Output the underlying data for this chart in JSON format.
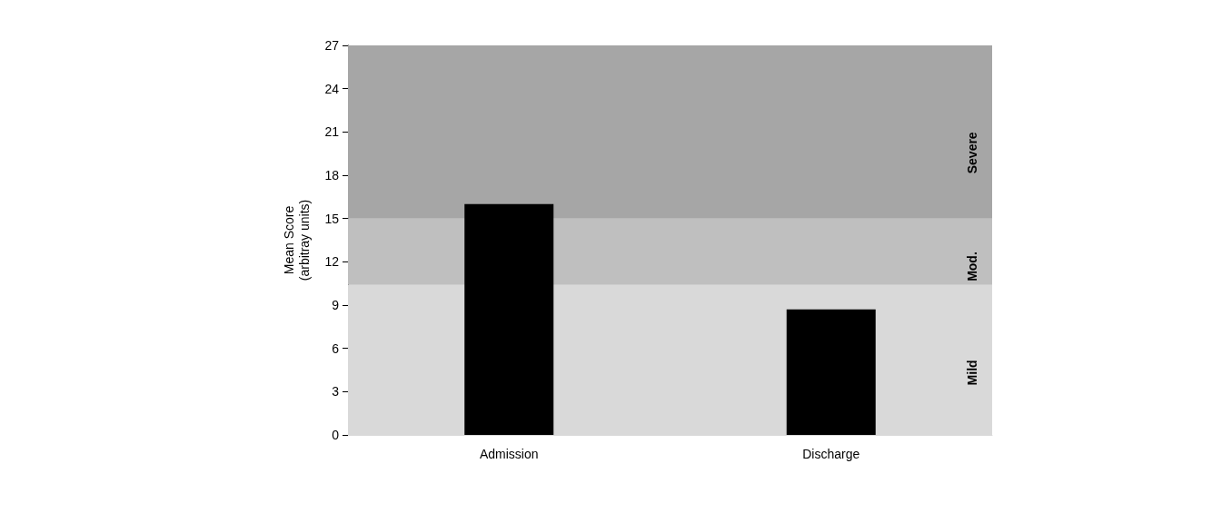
{
  "chart_data": {
    "type": "bar",
    "ylabel": "Mean Score (arbitray units)",
    "categories": [
      "Admission",
      "Discharge"
    ],
    "values": [
      16,
      8.7
    ],
    "color": "#000000",
    "ylim": [
      0,
      27
    ],
    "yticks": [
      0,
      3,
      6,
      9,
      12,
      15,
      18,
      21,
      24,
      27
    ],
    "grid": false,
    "bands": [
      {
        "axis": "y",
        "from": 0,
        "to": 10.4,
        "label": "Mild",
        "color": "#d9d9d9"
      },
      {
        "axis": "y",
        "from": 10.4,
        "to": 15,
        "label": "Mod.",
        "color": "#bfbfbf"
      },
      {
        "axis": "y",
        "from": 15,
        "to": 27,
        "label": "Severe",
        "color": "#a6a6a6"
      }
    ]
  }
}
